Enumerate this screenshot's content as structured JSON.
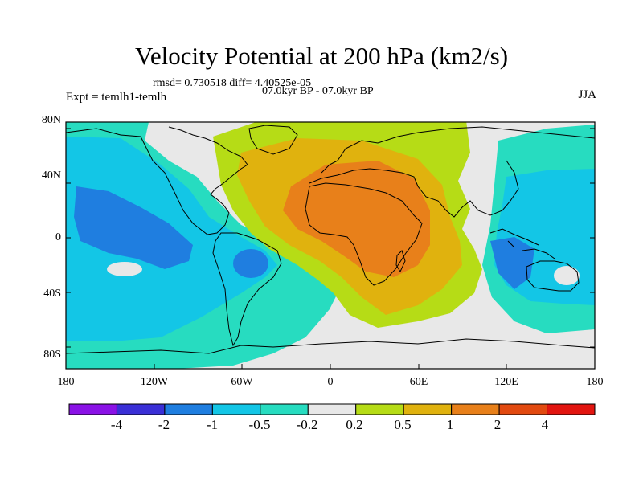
{
  "title": "Velocity Potential at 200 hPa (km2/s)",
  "stats_line": "rmsd= 0.730518 diff= 4.40525e-05",
  "period_line": "07.0kyr BP - 07.0kyr BP",
  "experiment": "Expt = temlh1-temlh",
  "season": "JJA",
  "lat_labels": [
    "80N",
    "40N",
    "0",
    "40S",
    "80S"
  ],
  "lon_labels": [
    "180",
    "120W",
    "60W",
    "0",
    "60E",
    "120E",
    "180"
  ],
  "colorbar": {
    "labels": [
      "-4",
      "-2",
      "-1",
      "-0.5",
      "-0.2",
      "0.2",
      "0.5",
      "1",
      "2",
      "4"
    ],
    "colors": [
      "#8a12e6",
      "#3a2fd6",
      "#1f7ee0",
      "#13c6e6",
      "#27dcc0",
      "#e8e8e8",
      "#b6dc16",
      "#e0b20e",
      "#e8801a",
      "#e24a10",
      "#e21510"
    ]
  }
}
